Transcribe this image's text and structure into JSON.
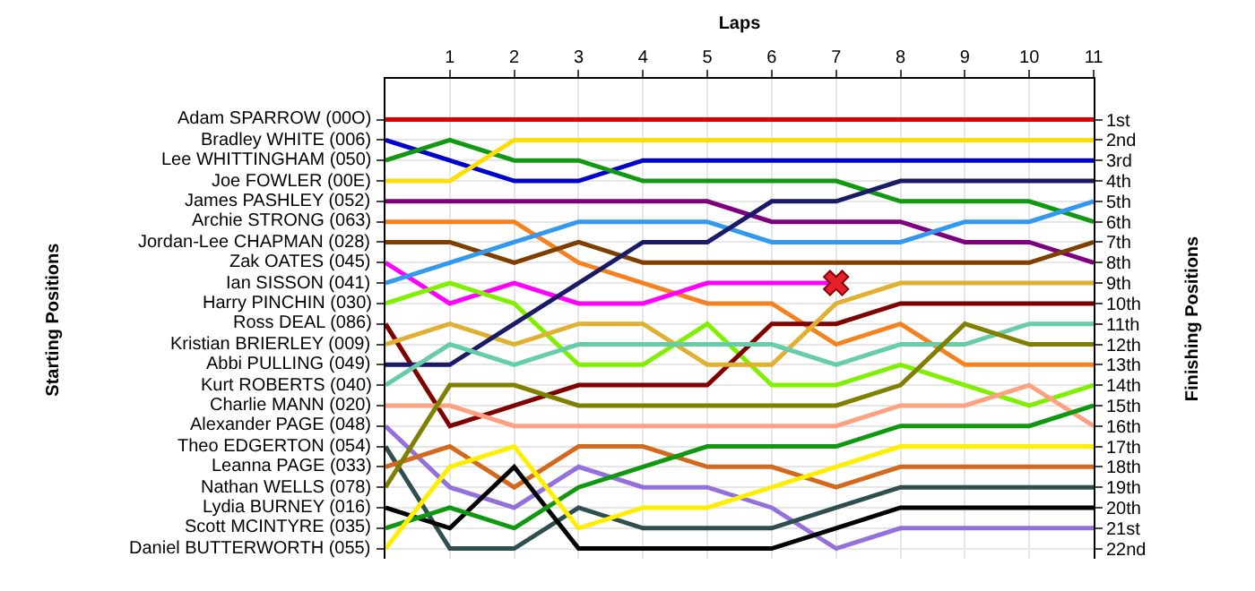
{
  "chart_data": {
    "type": "line",
    "xlabel": "Laps",
    "ylabel": "Finishing Positions",
    "x": [
      0,
      1,
      2,
      3,
      4,
      5,
      6,
      7,
      8,
      9,
      10,
      11
    ],
    "xlim": [
      0,
      11
    ],
    "xticks": [
      1,
      2,
      3,
      4,
      5,
      6,
      7,
      8,
      9,
      10,
      11
    ],
    "ylim": [
      22.5,
      -1
    ],
    "yticks": [
      {
        "value": 1,
        "label": "1st"
      },
      {
        "value": 2,
        "label": "2nd"
      },
      {
        "value": 3,
        "label": "3rd"
      },
      {
        "value": 4,
        "label": "4th"
      },
      {
        "value": 5,
        "label": "5th"
      },
      {
        "value": 6,
        "label": "6th"
      },
      {
        "value": 7,
        "label": "7th"
      },
      {
        "value": 8,
        "label": "8th"
      },
      {
        "value": 9,
        "label": "9th"
      },
      {
        "value": 10,
        "label": "10th"
      },
      {
        "value": 11,
        "label": "11th"
      },
      {
        "value": 12,
        "label": "12th"
      },
      {
        "value": 13,
        "label": "13th"
      },
      {
        "value": 14,
        "label": "14th"
      },
      {
        "value": 15,
        "label": "15th"
      },
      {
        "value": 16,
        "label": "16th"
      },
      {
        "value": 17,
        "label": "17th"
      },
      {
        "value": 18,
        "label": "18th"
      },
      {
        "value": 19,
        "label": "19th"
      },
      {
        "value": 20,
        "label": "20th"
      },
      {
        "value": 21,
        "label": "21st"
      },
      {
        "value": 22,
        "label": "22nd"
      }
    ],
    "annotations": [
      "Starting Positions"
    ],
    "grid": true,
    "marker": "none",
    "line_style": "solid",
    "series": [
      {
        "name": "Adam SPARROW (00O)",
        "color": "#dd0000",
        "values": [
          1,
          1,
          1,
          1,
          1,
          1,
          1,
          1,
          1,
          1,
          1,
          1
        ]
      },
      {
        "name": "Bradley WHITE (006)",
        "color": "#0000cc",
        "values": [
          2,
          3,
          4,
          4,
          3,
          3,
          3,
          3,
          3,
          3,
          3,
          3
        ]
      },
      {
        "name": "Lee WHITTINGHAM (050)",
        "color": "#119911",
        "values": [
          3,
          2,
          3,
          3,
          4,
          4,
          4,
          4,
          5,
          5,
          5,
          6
        ]
      },
      {
        "name": "Joe FOWLER (00E)",
        "color": "#ffdd00",
        "values": [
          4,
          4,
          2,
          2,
          2,
          2,
          2,
          2,
          2,
          2,
          2,
          2
        ]
      },
      {
        "name": "James PASHLEY (052)",
        "color": "#7f007f",
        "values": [
          5,
          5,
          5,
          5,
          5,
          5,
          6,
          6,
          6,
          7,
          7,
          8
        ]
      },
      {
        "name": "Archie STRONG (063)",
        "color": "#f5821f",
        "values": [
          6,
          6,
          6,
          8,
          9,
          10,
          10,
          12,
          11,
          13,
          13,
          13
        ]
      },
      {
        "name": "Jordan-Lee CHAPMAN (028)",
        "color": "#7f3f00",
        "values": [
          7,
          7,
          8,
          7,
          8,
          8,
          8,
          8,
          8,
          8,
          8,
          7
        ]
      },
      {
        "name": "Zak OATES (045)",
        "color": "#ff00ff",
        "values": [
          8,
          10,
          9,
          10,
          10,
          9,
          9,
          9,
          null,
          null,
          null,
          null
        ]
      },
      {
        "name": "Ian SISSON (041)",
        "color": "#3399ee",
        "values": [
          9,
          8,
          7,
          6,
          6,
          6,
          7,
          7,
          7,
          6,
          6,
          5
        ]
      },
      {
        "name": "Harry PINCHIN (030)",
        "color": "#80f000",
        "values": [
          10,
          9,
          10,
          13,
          13,
          11,
          14,
          14,
          13,
          14,
          15,
          14
        ]
      },
      {
        "name": "Ross DEAL (086)",
        "color": "#800000",
        "values": [
          11,
          16,
          15,
          14,
          14,
          14,
          11,
          11,
          10,
          10,
          10,
          10
        ]
      },
      {
        "name": "Kristian BRIERLEY (009)",
        "color": "#e0b030",
        "values": [
          12,
          11,
          12,
          11,
          11,
          13,
          13,
          10,
          9,
          9,
          9,
          9
        ]
      },
      {
        "name": "Abbi PULLING (049)",
        "color": "#1a1a66",
        "values": [
          13,
          13,
          11,
          9,
          7,
          7,
          5,
          5,
          4,
          4,
          4,
          4
        ]
      },
      {
        "name": "Kurt ROBERTS (040)",
        "color": "#66ccaa",
        "values": [
          14,
          12,
          13,
          12,
          12,
          12,
          12,
          13,
          12,
          12,
          11,
          11
        ]
      },
      {
        "name": "Charlie MANN (020)",
        "color": "#ffa080",
        "values": [
          15,
          15,
          16,
          16,
          16,
          16,
          16,
          16,
          15,
          15,
          14,
          16
        ]
      },
      {
        "name": "Alexander PAGE (048)",
        "color": "#9370db",
        "values": [
          16,
          19,
          20,
          18,
          19,
          19,
          20,
          22,
          21,
          21,
          21,
          21
        ]
      },
      {
        "name": "Theo EDGERTON (054)",
        "color": "#2f4f4f",
        "values": [
          17,
          22,
          22,
          20,
          21,
          21,
          21,
          20,
          19,
          19,
          19,
          19
        ]
      },
      {
        "name": "Leanna PAGE (033)",
        "color": "#d2691e",
        "values": [
          18,
          17,
          19,
          17,
          17,
          18,
          18,
          19,
          18,
          18,
          18,
          18
        ]
      },
      {
        "name": "Nathan WELLS (078)",
        "color": "#808000",
        "values": [
          19,
          14,
          14,
          15,
          15,
          15,
          15,
          15,
          14,
          11,
          12,
          12
        ]
      },
      {
        "name": "Lydia BURNEY (016)",
        "color": "#000000",
        "values": [
          20,
          21,
          18,
          22,
          22,
          22,
          22,
          21,
          20,
          20,
          20,
          20
        ]
      },
      {
        "name": "Scott MCINTYRE (035)",
        "color": "#109910",
        "values": [
          21,
          20,
          21,
          19,
          18,
          17,
          17,
          17,
          16,
          16,
          16,
          15
        ]
      },
      {
        "name": "Daniel BUTTERWORTH (055)",
        "color": "#ffee00",
        "values": [
          22,
          18,
          17,
          21,
          20,
          20,
          19,
          18,
          17,
          17,
          17,
          17
        ]
      },
      {
        "type": "scatter",
        "color": "#e8202a",
        "marker": "cross",
        "x": [
          7
        ],
        "values": [
          9
        ]
      }
    ]
  }
}
